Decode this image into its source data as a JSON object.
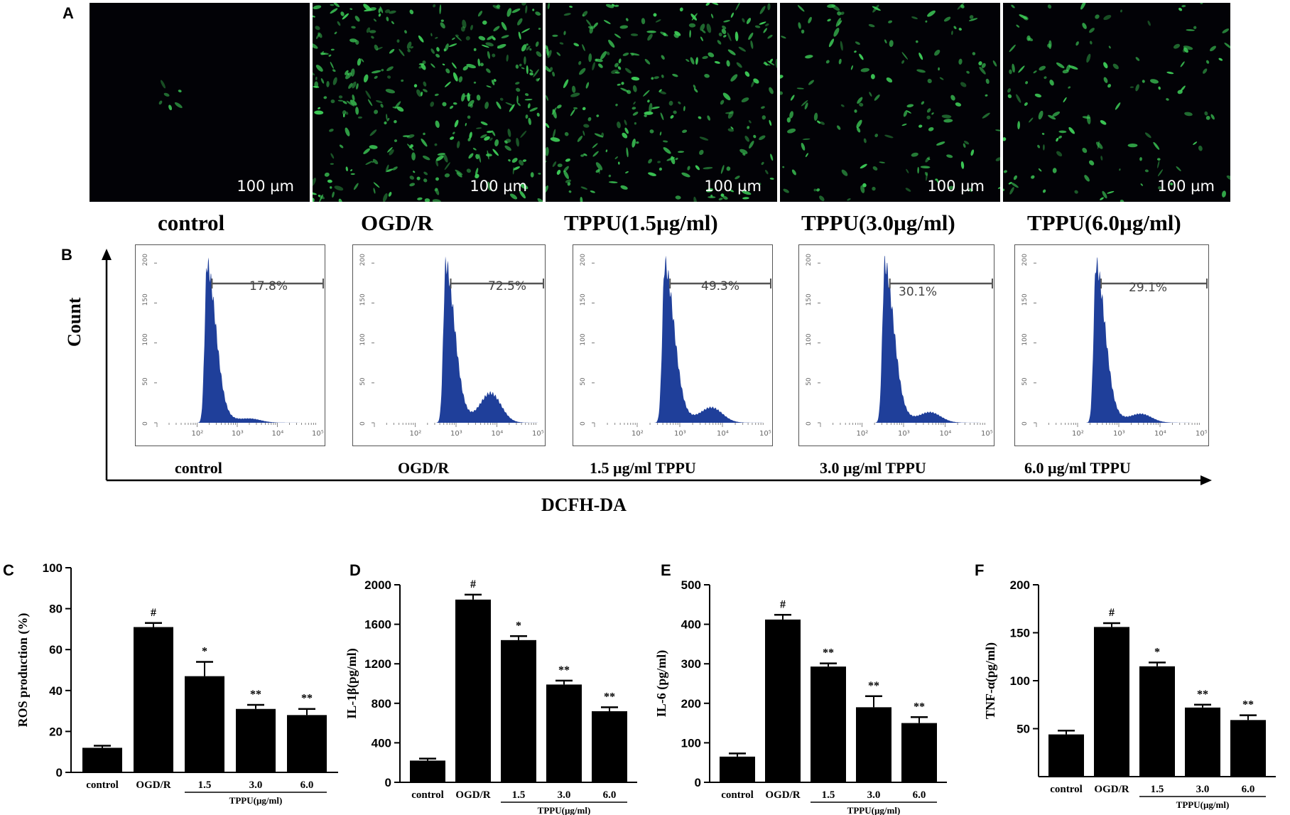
{
  "panel_labels": [
    "A",
    "B",
    "C",
    "D",
    "E",
    "F"
  ],
  "micrographs": [
    {
      "condition": "control",
      "scale": "100 µm",
      "cells": 6
    },
    {
      "condition": "OGD/R",
      "scale": "100 µm",
      "cells": 330
    },
    {
      "condition": "TPPU(1.5µg/ml)",
      "scale": "100 µm",
      "cells": 260
    },
    {
      "condition": "TPPU(3.0µg/ml)",
      "scale": "100 µm",
      "cells": 140
    },
    {
      "condition": "TPPU(6.0µg/ml)",
      "scale": "100 µm",
      "cells": 130
    }
  ],
  "flow": {
    "y_axis_label": "Count",
    "x_axis_label": "DCFH-DA",
    "y_ticks": [
      "0",
      "50",
      "100",
      "150",
      "200"
    ],
    "x_ticks": [
      "10²",
      "10³",
      "10⁴",
      "10⁵"
    ],
    "panels": [
      {
        "label": "control",
        "percent": "17.8%",
        "peak": 2.25,
        "tail": 0.02
      },
      {
        "label": "OGD/R",
        "percent": "72.5%",
        "peak": 2.75,
        "tail": 0.18
      },
      {
        "label": "1.5 µg/ml TPPU",
        "percent": "49.3%",
        "peak": 2.65,
        "tail": 0.09
      },
      {
        "label": "3.0 µg/ml TPPU",
        "percent": "30.1%",
        "peak": 2.55,
        "tail": 0.06
      },
      {
        "label": "6.0 µg/ml TPPU",
        "percent": "29.1%",
        "peak": 2.45,
        "tail": 0.05
      }
    ]
  },
  "chart_data": [
    {
      "type": "bar",
      "panel": "C",
      "categories": [
        "control",
        "OGD/R",
        "1.5",
        "3.0",
        "6.0"
      ],
      "values": [
        12,
        71,
        47,
        31,
        28
      ],
      "errors": [
        1,
        2,
        7,
        2,
        3
      ],
      "significance": [
        "",
        "#",
        "*",
        "**",
        "**"
      ],
      "ylabel": "ROS production (%)",
      "xlabel": "TPPU(µg/ml)",
      "ylim": [
        0,
        100
      ],
      "yticks": [
        0,
        20,
        40,
        60,
        80,
        100
      ]
    },
    {
      "type": "bar",
      "panel": "D",
      "categories": [
        "control",
        "OGD/R",
        "1.5",
        "3.0",
        "6.0"
      ],
      "values": [
        220,
        1850,
        1440,
        990,
        720
      ],
      "errors": [
        20,
        50,
        40,
        40,
        40
      ],
      "significance": [
        "",
        "#",
        "*",
        "**",
        "**"
      ],
      "ylabel": "IL-1β(pg/ml)",
      "xlabel": "TPPU(µg/ml)",
      "ylim": [
        0,
        2000
      ],
      "yticks": [
        0,
        400,
        800,
        1200,
        1600,
        2000
      ]
    },
    {
      "type": "bar",
      "panel": "E",
      "categories": [
        "control",
        "OGD/R",
        "1.5",
        "3.0",
        "6.0"
      ],
      "values": [
        65,
        412,
        293,
        190,
        150
      ],
      "errors": [
        8,
        12,
        8,
        28,
        15
      ],
      "significance": [
        "",
        "#",
        "**",
        "**",
        "**"
      ],
      "ylabel": "IL-6 (pg/ml)",
      "xlabel": "TPPU(µg/ml)",
      "ylim": [
        0,
        500
      ],
      "yticks": [
        0,
        100,
        200,
        300,
        400,
        500
      ]
    },
    {
      "type": "bar",
      "panel": "F",
      "categories": [
        "control",
        "OGD/R",
        "1.5",
        "3.0",
        "6.0"
      ],
      "values": [
        44,
        156,
        115,
        72,
        59
      ],
      "errors": [
        4,
        4,
        4,
        3,
        5
      ],
      "significance": [
        "",
        "#",
        "*",
        "**",
        "**"
      ],
      "ylabel": "TNF-α(pg/ml)",
      "xlabel": "TPPU(µg/ml)",
      "ylim": [
        0,
        200
      ],
      "yticks": [
        50,
        100,
        150,
        200
      ]
    }
  ],
  "colors": {
    "fluorescence": "#3fd25a",
    "histogram": "#1f3f9a",
    "bars": "#000000"
  }
}
